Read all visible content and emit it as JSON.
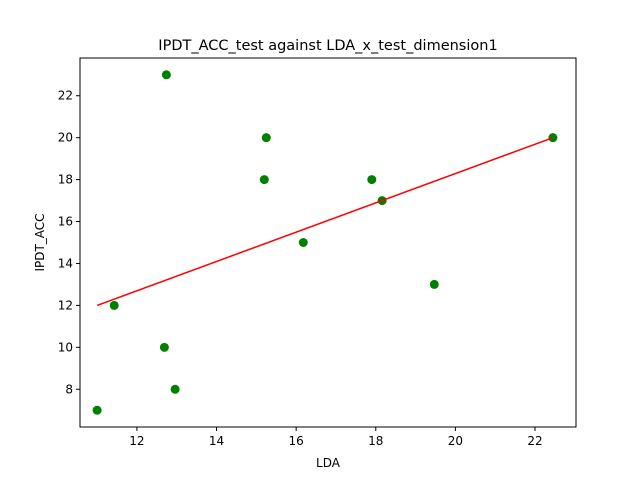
{
  "chart_data": {
    "type": "scatter",
    "title": "IPDT_ACC_test against LDA_x_test_dimension1",
    "xlabel": "LDA",
    "ylabel": "IPDT_ACC",
    "xlim": [
      10.57,
      23.03
    ],
    "ylim": [
      6.2,
      23.8
    ],
    "xticks": [
      12,
      14,
      16,
      18,
      20,
      22
    ],
    "yticks": [
      8,
      10,
      12,
      14,
      16,
      18,
      20,
      22
    ],
    "grid": false,
    "legend": "none",
    "series": [
      {
        "kind": "scatter",
        "color": "#008000",
        "points": [
          {
            "x": 11.0,
            "y": 7
          },
          {
            "x": 11.43,
            "y": 12
          },
          {
            "x": 12.69,
            "y": 10
          },
          {
            "x": 12.74,
            "y": 23
          },
          {
            "x": 12.96,
            "y": 8
          },
          {
            "x": 15.2,
            "y": 18
          },
          {
            "x": 15.25,
            "y": 20
          },
          {
            "x": 16.18,
            "y": 15
          },
          {
            "x": 17.9,
            "y": 18
          },
          {
            "x": 18.16,
            "y": 17
          },
          {
            "x": 19.47,
            "y": 13
          },
          {
            "x": 22.45,
            "y": 20
          }
        ]
      },
      {
        "kind": "line",
        "color": "#ff0000",
        "points": [
          {
            "x": 11.0,
            "y": 12.0
          },
          {
            "x": 22.45,
            "y": 20.0
          }
        ]
      }
    ]
  }
}
